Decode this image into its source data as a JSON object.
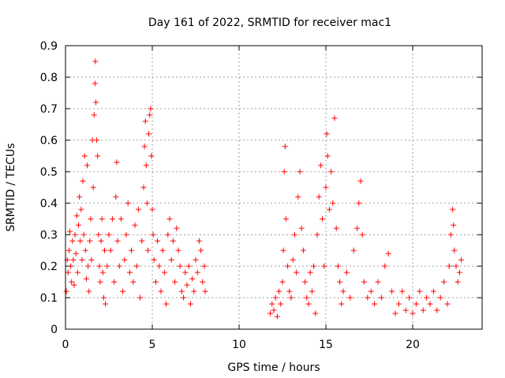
{
  "chart_data": {
    "type": "scatter",
    "title": "Day 161 of 2022, SRMTID for receiver mac1",
    "xlabel": "GPS time / hours",
    "ylabel": "SRMTID / TECUs",
    "xlim": [
      0,
      24
    ],
    "ylim": [
      0,
      0.9
    ],
    "xticks": [
      0,
      5,
      10,
      15,
      20
    ],
    "xtick_labels": [
      "0",
      "5",
      "10",
      "15",
      "20"
    ],
    "yticks": [
      0,
      0.1,
      0.2,
      0.3,
      0.4,
      0.5,
      0.6,
      0.7,
      0.8,
      0.9
    ],
    "ytick_labels": [
      "0",
      "0.1",
      "0.2",
      "0.3",
      "0.4",
      "0.5",
      "0.6",
      "0.7",
      "0.8",
      "0.9"
    ],
    "grid": true,
    "marker": "+",
    "color": "#ff0000",
    "series": [
      {
        "name": "SRMTID",
        "points": [
          [
            0.05,
            0.12
          ],
          [
            0.1,
            0.22
          ],
          [
            0.15,
            0.18
          ],
          [
            0.2,
            0.25
          ],
          [
            0.25,
            0.31
          ],
          [
            0.3,
            0.2
          ],
          [
            0.35,
            0.15
          ],
          [
            0.4,
            0.28
          ],
          [
            0.45,
            0.22
          ],
          [
            0.5,
            0.14
          ],
          [
            0.55,
            0.3
          ],
          [
            0.6,
            0.24
          ],
          [
            0.65,
            0.36
          ],
          [
            0.7,
            0.18
          ],
          [
            0.75,
            0.33
          ],
          [
            0.8,
            0.42
          ],
          [
            0.85,
            0.28
          ],
          [
            0.9,
            0.38
          ],
          [
            0.95,
            0.22
          ],
          [
            1.0,
            0.47
          ],
          [
            1.05,
            0.3
          ],
          [
            1.1,
            0.55
          ],
          [
            1.15,
            0.25
          ],
          [
            1.2,
            0.16
          ],
          [
            1.25,
            0.52
          ],
          [
            1.3,
            0.2
          ],
          [
            1.35,
            0.12
          ],
          [
            1.4,
            0.28
          ],
          [
            1.45,
            0.35
          ],
          [
            1.5,
            0.22
          ],
          [
            1.55,
            0.6
          ],
          [
            1.6,
            0.45
          ],
          [
            1.65,
            0.68
          ],
          [
            1.7,
            0.78
          ],
          [
            1.72,
            0.85
          ],
          [
            1.75,
            0.72
          ],
          [
            1.8,
            0.6
          ],
          [
            1.85,
            0.55
          ],
          [
            1.9,
            0.3
          ],
          [
            1.95,
            0.2
          ],
          [
            2.0,
            0.15
          ],
          [
            2.05,
            0.28
          ],
          [
            2.1,
            0.35
          ],
          [
            2.15,
            0.18
          ],
          [
            2.2,
            0.1
          ],
          [
            2.25,
            0.25
          ],
          [
            2.3,
            0.08
          ],
          [
            2.4,
            0.2
          ],
          [
            2.5,
            0.3
          ],
          [
            2.6,
            0.25
          ],
          [
            2.7,
            0.35
          ],
          [
            2.8,
            0.15
          ],
          [
            2.9,
            0.42
          ],
          [
            2.95,
            0.53
          ],
          [
            3.0,
            0.28
          ],
          [
            3.1,
            0.2
          ],
          [
            3.2,
            0.35
          ],
          [
            3.3,
            0.12
          ],
          [
            3.4,
            0.22
          ],
          [
            3.5,
            0.3
          ],
          [
            3.6,
            0.4
          ],
          [
            3.7,
            0.18
          ],
          [
            3.8,
            0.25
          ],
          [
            3.9,
            0.15
          ],
          [
            4.0,
            0.33
          ],
          [
            4.1,
            0.2
          ],
          [
            4.2,
            0.38
          ],
          [
            4.3,
            0.1
          ],
          [
            4.4,
            0.28
          ],
          [
            4.5,
            0.45
          ],
          [
            4.55,
            0.58
          ],
          [
            4.6,
            0.66
          ],
          [
            4.65,
            0.52
          ],
          [
            4.7,
            0.4
          ],
          [
            4.75,
            0.25
          ],
          [
            4.8,
            0.62
          ],
          [
            4.85,
            0.68
          ],
          [
            4.9,
            0.7
          ],
          [
            4.95,
            0.55
          ],
          [
            5.0,
            0.38
          ],
          [
            5.05,
            0.3
          ],
          [
            5.1,
            0.22
          ],
          [
            5.2,
            0.15
          ],
          [
            5.3,
            0.28
          ],
          [
            5.4,
            0.2
          ],
          [
            5.5,
            0.12
          ],
          [
            5.6,
            0.25
          ],
          [
            5.7,
            0.18
          ],
          [
            5.8,
            0.08
          ],
          [
            5.9,
            0.3
          ],
          [
            6.0,
            0.35
          ],
          [
            6.1,
            0.22
          ],
          [
            6.2,
            0.28
          ],
          [
            6.3,
            0.15
          ],
          [
            6.4,
            0.32
          ],
          [
            6.5,
            0.25
          ],
          [
            6.6,
            0.2
          ],
          [
            6.7,
            0.12
          ],
          [
            6.8,
            0.1
          ],
          [
            6.9,
            0.18
          ],
          [
            7.0,
            0.14
          ],
          [
            7.1,
            0.2
          ],
          [
            7.2,
            0.08
          ],
          [
            7.3,
            0.16
          ],
          [
            7.4,
            0.12
          ],
          [
            7.5,
            0.22
          ],
          [
            7.6,
            0.18
          ],
          [
            7.7,
            0.28
          ],
          [
            7.8,
            0.25
          ],
          [
            7.9,
            0.15
          ],
          [
            8.0,
            0.2
          ],
          [
            8.05,
            0.12
          ],
          [
            11.8,
            0.05
          ],
          [
            11.9,
            0.08
          ],
          [
            12.0,
            0.06
          ],
          [
            12.1,
            0.1
          ],
          [
            12.2,
            0.04
          ],
          [
            12.3,
            0.12
          ],
          [
            12.4,
            0.08
          ],
          [
            12.5,
            0.15
          ],
          [
            12.55,
            0.25
          ],
          [
            12.6,
            0.5
          ],
          [
            12.65,
            0.58
          ],
          [
            12.7,
            0.35
          ],
          [
            12.8,
            0.2
          ],
          [
            12.9,
            0.12
          ],
          [
            13.0,
            0.1
          ],
          [
            13.1,
            0.22
          ],
          [
            13.2,
            0.3
          ],
          [
            13.3,
            0.18
          ],
          [
            13.4,
            0.42
          ],
          [
            13.5,
            0.5
          ],
          [
            13.6,
            0.32
          ],
          [
            13.7,
            0.25
          ],
          [
            13.8,
            0.15
          ],
          [
            13.9,
            0.1
          ],
          [
            14.0,
            0.08
          ],
          [
            14.1,
            0.18
          ],
          [
            14.2,
            0.12
          ],
          [
            14.3,
            0.2
          ],
          [
            14.4,
            0.05
          ],
          [
            14.5,
            0.3
          ],
          [
            14.6,
            0.42
          ],
          [
            14.7,
            0.52
          ],
          [
            14.8,
            0.35
          ],
          [
            14.9,
            0.2
          ],
          [
            15.0,
            0.45
          ],
          [
            15.05,
            0.62
          ],
          [
            15.1,
            0.55
          ],
          [
            15.2,
            0.38
          ],
          [
            15.3,
            0.5
          ],
          [
            15.4,
            0.4
          ],
          [
            15.5,
            0.67
          ],
          [
            15.6,
            0.32
          ],
          [
            15.7,
            0.2
          ],
          [
            15.8,
            0.15
          ],
          [
            15.9,
            0.08
          ],
          [
            16.0,
            0.12
          ],
          [
            16.2,
            0.18
          ],
          [
            16.4,
            0.1
          ],
          [
            16.6,
            0.25
          ],
          [
            16.8,
            0.32
          ],
          [
            16.9,
            0.4
          ],
          [
            17.0,
            0.47
          ],
          [
            17.1,
            0.3
          ],
          [
            17.2,
            0.15
          ],
          [
            17.4,
            0.1
          ],
          [
            17.6,
            0.12
          ],
          [
            17.8,
            0.08
          ],
          [
            18.0,
            0.15
          ],
          [
            18.2,
            0.1
          ],
          [
            18.4,
            0.2
          ],
          [
            18.6,
            0.24
          ],
          [
            18.8,
            0.12
          ],
          [
            19.0,
            0.05
          ],
          [
            19.2,
            0.08
          ],
          [
            19.4,
            0.12
          ],
          [
            19.6,
            0.06
          ],
          [
            19.8,
            0.1
          ],
          [
            20.0,
            0.05
          ],
          [
            20.2,
            0.08
          ],
          [
            20.4,
            0.12
          ],
          [
            20.6,
            0.06
          ],
          [
            20.8,
            0.1
          ],
          [
            21.0,
            0.08
          ],
          [
            21.2,
            0.12
          ],
          [
            21.4,
            0.06
          ],
          [
            21.6,
            0.1
          ],
          [
            21.8,
            0.15
          ],
          [
            22.0,
            0.08
          ],
          [
            22.1,
            0.2
          ],
          [
            22.2,
            0.3
          ],
          [
            22.3,
            0.38
          ],
          [
            22.35,
            0.33
          ],
          [
            22.4,
            0.25
          ],
          [
            22.5,
            0.2
          ],
          [
            22.6,
            0.15
          ],
          [
            22.7,
            0.18
          ],
          [
            22.8,
            0.22
          ]
        ]
      }
    ]
  }
}
